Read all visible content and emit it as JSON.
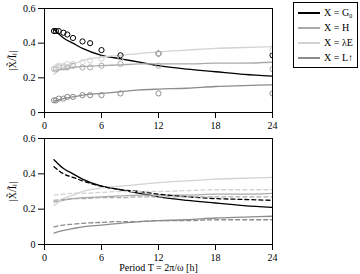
{
  "chart_data": [
    {
      "type": "line",
      "y_label": "|X̃/Ĩₗ|",
      "xlim": [
        0,
        24
      ],
      "xticks": [
        0,
        6,
        12,
        18,
        24
      ],
      "ylim": [
        0,
        0.6
      ],
      "yticks": [
        0,
        0.2,
        0.4,
        0.6
      ],
      "legend": "top-right",
      "x": [
        1,
        2,
        3,
        4,
        6,
        8,
        10,
        12,
        15,
        18,
        21,
        24
      ],
      "series": [
        {
          "name": "X = G₀",
          "color": "#000000",
          "type": "line",
          "line_style": "solid",
          "values": [
            0.48,
            0.43,
            0.4,
            0.37,
            0.33,
            0.31,
            0.29,
            0.27,
            0.25,
            0.235,
            0.22,
            0.21
          ]
        },
        {
          "name": "X = H",
          "color": "#aaaaaa",
          "type": "line",
          "line_style": "solid",
          "values": [
            0.24,
            0.25,
            0.26,
            0.265,
            0.27,
            0.275,
            0.28,
            0.28,
            0.28,
            0.285,
            0.285,
            0.29
          ]
        },
        {
          "name": "X = λE",
          "color": "#d3d3d3",
          "type": "line",
          "line_style": "solid",
          "values": [
            0.22,
            0.26,
            0.28,
            0.3,
            0.32,
            0.33,
            0.34,
            0.35,
            0.36,
            0.37,
            0.375,
            0.38
          ]
        },
        {
          "name": "X = L↑",
          "color": "#8c8c8c",
          "type": "line",
          "line_style": "solid",
          "values": [
            0.065,
            0.08,
            0.09,
            0.1,
            0.11,
            0.12,
            0.13,
            0.135,
            0.14,
            0.15,
            0.155,
            0.16
          ]
        },
        {
          "color": "#000000",
          "type": "scatter",
          "marker": "circle",
          "x": [
            1,
            1.2,
            1.5,
            2,
            2.4,
            3,
            4,
            4.8,
            6,
            8,
            12,
            24
          ],
          "values": [
            0.47,
            0.47,
            0.47,
            0.46,
            0.45,
            0.43,
            0.41,
            0.4,
            0.36,
            0.33,
            0.34,
            0.33
          ]
        },
        {
          "color": "#aaaaaa",
          "type": "scatter",
          "marker": "circle",
          "x": [
            1,
            1.2,
            1.5,
            2,
            2.4,
            3,
            4,
            4.8,
            6,
            8,
            12,
            24
          ],
          "values": [
            0.25,
            0.25,
            0.26,
            0.26,
            0.26,
            0.27,
            0.26,
            0.26,
            0.27,
            0.28,
            0.27,
            0.25
          ]
        },
        {
          "color": "#d3d3d3",
          "type": "scatter",
          "marker": "circle",
          "x": [
            1,
            1.2,
            1.5,
            2,
            2.4,
            3,
            4,
            4.8,
            6,
            8,
            12,
            24
          ],
          "values": [
            0.25,
            0.26,
            0.27,
            0.27,
            0.28,
            0.28,
            0.29,
            0.3,
            0.31,
            0.31,
            0.34,
            0.36
          ]
        },
        {
          "color": "#8c8c8c",
          "type": "scatter",
          "marker": "circle",
          "x": [
            1,
            1.2,
            1.5,
            2,
            2.4,
            3,
            4,
            4.8,
            6,
            8,
            12,
            24
          ],
          "values": [
            0.07,
            0.07,
            0.08,
            0.08,
            0.09,
            0.09,
            0.1,
            0.1,
            0.1,
            0.11,
            0.11,
            0.11
          ]
        }
      ]
    },
    {
      "type": "line",
      "y_label": "|X̃/Ĩₗ|",
      "x_label": "Period T = 2π/ω [h]",
      "xlim": [
        0,
        24
      ],
      "xticks": [
        0,
        6,
        12,
        18,
        24
      ],
      "ylim": [
        0,
        0.6
      ],
      "yticks": [
        0,
        0.2,
        0.4,
        0.6
      ],
      "x": [
        1,
        2,
        3,
        4,
        6,
        8,
        10,
        12,
        15,
        18,
        21,
        24
      ],
      "series": [
        {
          "color": "#000000",
          "line_style": "solid",
          "values": [
            0.48,
            0.43,
            0.4,
            0.37,
            0.33,
            0.31,
            0.29,
            0.27,
            0.25,
            0.235,
            0.22,
            0.21
          ]
        },
        {
          "color": "#aaaaaa",
          "line_style": "solid",
          "values": [
            0.24,
            0.25,
            0.26,
            0.265,
            0.27,
            0.275,
            0.28,
            0.28,
            0.28,
            0.285,
            0.285,
            0.29
          ]
        },
        {
          "color": "#d3d3d3",
          "line_style": "solid",
          "values": [
            0.22,
            0.26,
            0.28,
            0.3,
            0.32,
            0.33,
            0.34,
            0.35,
            0.36,
            0.37,
            0.375,
            0.38
          ]
        },
        {
          "color": "#8c8c8c",
          "line_style": "solid",
          "values": [
            0.065,
            0.08,
            0.09,
            0.1,
            0.11,
            0.12,
            0.13,
            0.135,
            0.14,
            0.15,
            0.155,
            0.16
          ]
        },
        {
          "color": "#000000",
          "line_style": "dashed",
          "values": [
            0.44,
            0.4,
            0.38,
            0.36,
            0.33,
            0.31,
            0.3,
            0.285,
            0.27,
            0.26,
            0.255,
            0.25
          ]
        },
        {
          "color": "#aaaaaa",
          "line_style": "dashed",
          "values": [
            0.25,
            0.255,
            0.26,
            0.26,
            0.265,
            0.265,
            0.27,
            0.27,
            0.27,
            0.27,
            0.27,
            0.27
          ]
        },
        {
          "color": "#d3d3d3",
          "line_style": "dashed",
          "values": [
            0.28,
            0.285,
            0.29,
            0.29,
            0.295,
            0.3,
            0.3,
            0.3,
            0.305,
            0.31,
            0.31,
            0.31
          ]
        },
        {
          "color": "#8c8c8c",
          "line_style": "dashed",
          "values": [
            0.1,
            0.11,
            0.115,
            0.12,
            0.125,
            0.13,
            0.13,
            0.135,
            0.135,
            0.14,
            0.14,
            0.14
          ]
        }
      ]
    }
  ]
}
